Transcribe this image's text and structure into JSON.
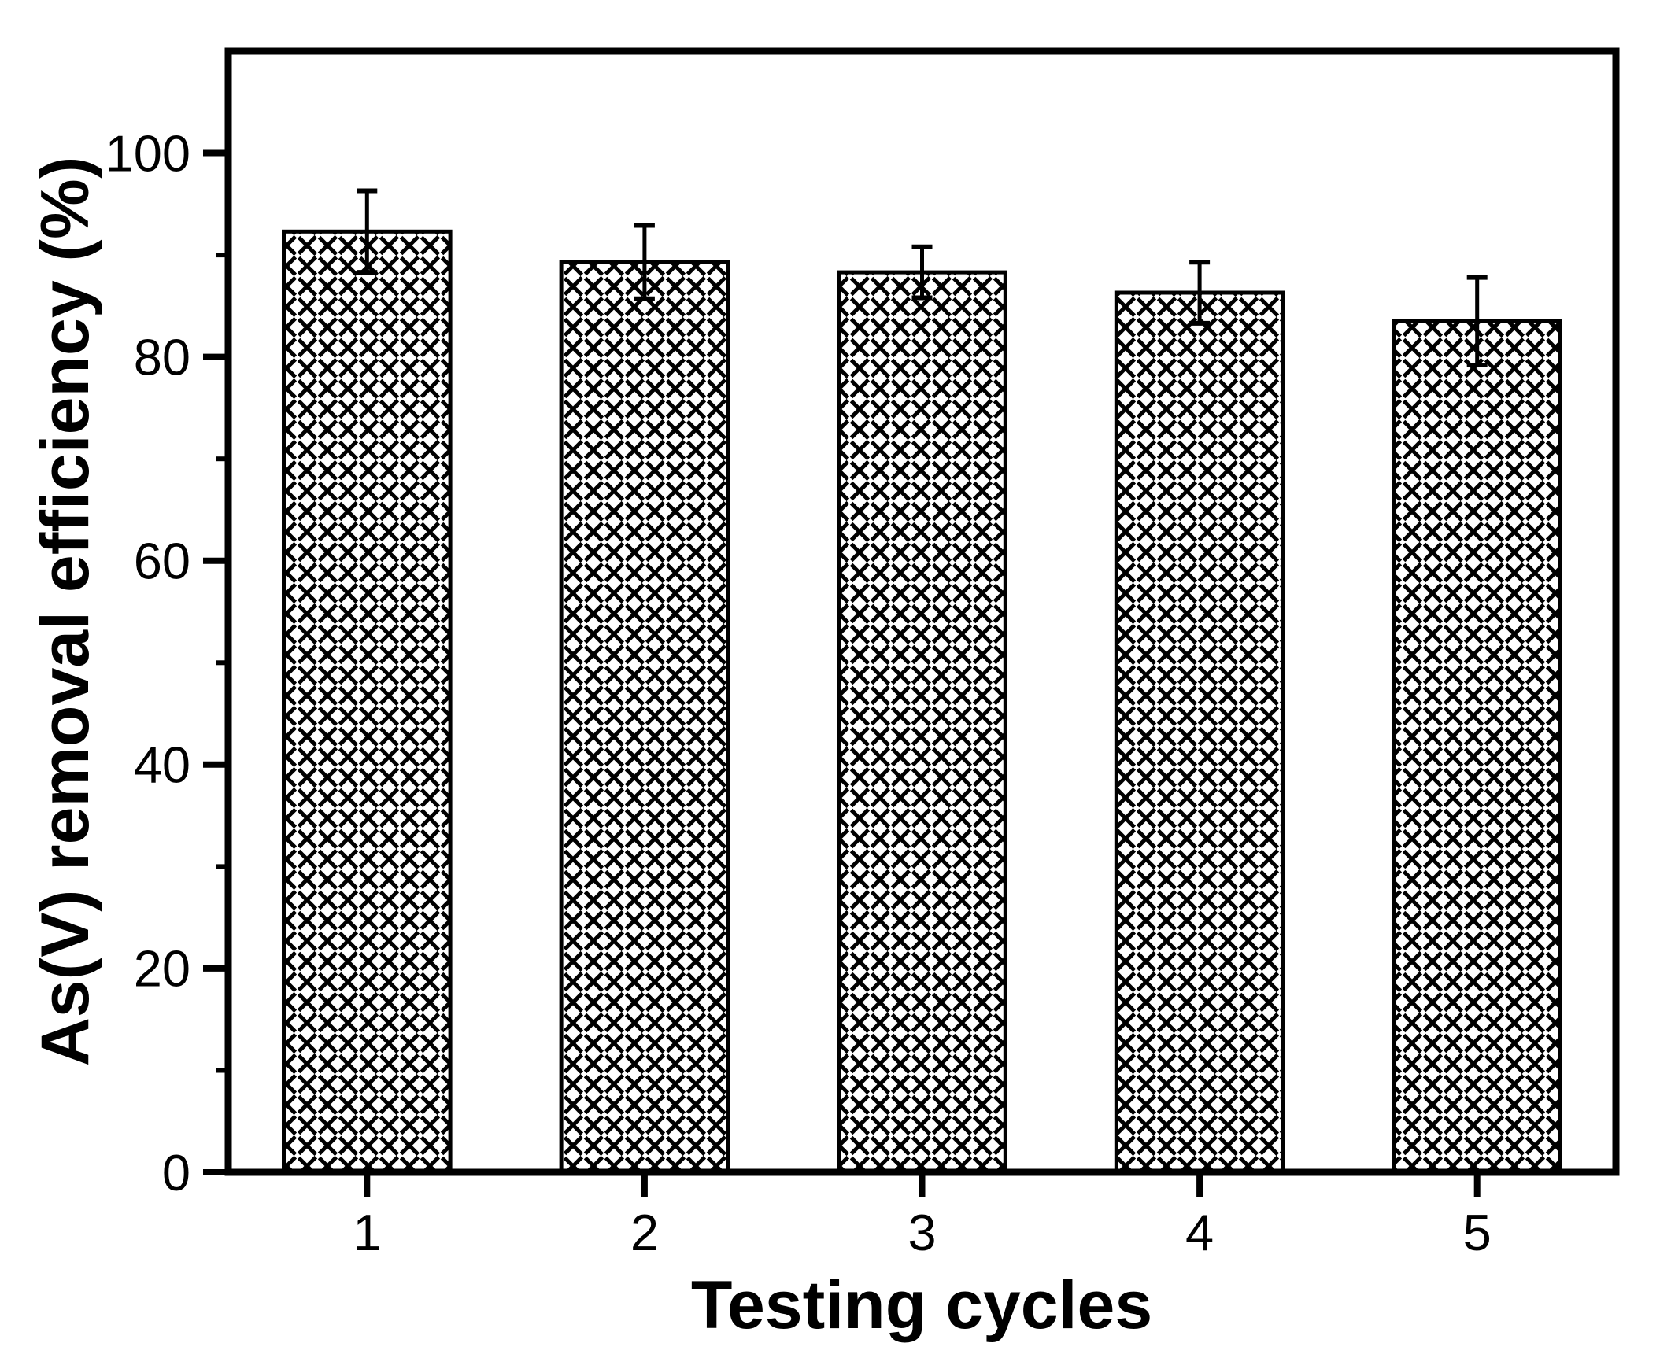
{
  "chart_data": {
    "type": "bar",
    "title": "",
    "xlabel": "Testing cycles",
    "ylabel": "As(V) removal efficiency (%)",
    "categories": [
      "1",
      "2",
      "3",
      "4",
      "5"
    ],
    "values": [
      92.3,
      89.3,
      88.3,
      86.3,
      83.5
    ],
    "errors": [
      4.0,
      3.6,
      2.5,
      3.0,
      4.3
    ],
    "ylim": [
      0,
      110
    ],
    "y_major_ticks": [
      0,
      20,
      40,
      60,
      80,
      100
    ],
    "y_minor_ticks": [
      10,
      30,
      50,
      70,
      90
    ],
    "grid": false,
    "legend": null,
    "bar_fill": "white-with-black-crosshatch",
    "bar_outline_color": "#000000",
    "axis_color": "#000000",
    "background_color": "#ffffff"
  }
}
